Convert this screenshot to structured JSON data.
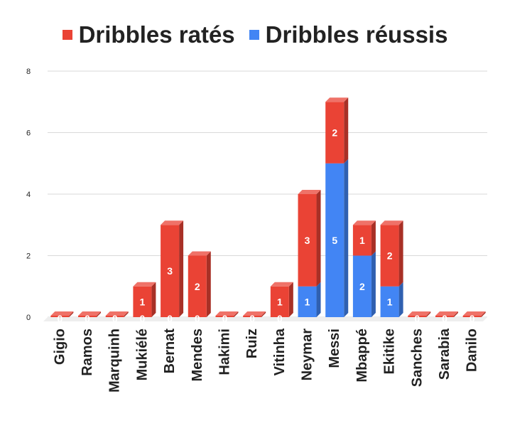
{
  "chart_data": {
    "type": "bar",
    "stacked": true,
    "three_d": true,
    "title": "",
    "xlabel": "",
    "ylabel": "",
    "ylim": [
      0,
      8
    ],
    "yticks": [
      0,
      2,
      4,
      6,
      8
    ],
    "grid": true,
    "legend_position": "top",
    "categories": [
      "Gigio",
      "Ramos",
      "Marquinh",
      "Mukiélé",
      "Bernat",
      "Mendes",
      "Hakimi",
      "Ruiz",
      "Vitinha",
      "Neymar",
      "Messi",
      "Mbappé",
      "Ekitike",
      "Sanches",
      "Sarabia",
      "Danilo"
    ],
    "series": [
      {
        "name": "Dribbles réussis",
        "color": "#4285f4",
        "values": [
          0,
          0,
          0,
          0,
          0,
          0,
          0,
          0,
          0,
          1,
          5,
          2,
          1,
          0,
          0,
          0
        ],
        "shown_labels": [
          null,
          null,
          null,
          0,
          0,
          0,
          null,
          null,
          0,
          1,
          5,
          2,
          1,
          null,
          null,
          null
        ]
      },
      {
        "name": "Dribbles ratés",
        "color": "#ea4335",
        "values": [
          0,
          0,
          0,
          1,
          3,
          2,
          0,
          0,
          1,
          3,
          2,
          1,
          2,
          0,
          0,
          0
        ],
        "shown_labels": [
          0,
          0,
          0,
          1,
          3,
          2,
          0,
          0,
          1,
          3,
          2,
          1,
          2,
          0,
          0,
          0
        ]
      }
    ],
    "legend": [
      {
        "label": "Dribbles ratés",
        "color": "#ea4335"
      },
      {
        "label": "Dribbles réussis",
        "color": "#4285f4"
      }
    ]
  }
}
